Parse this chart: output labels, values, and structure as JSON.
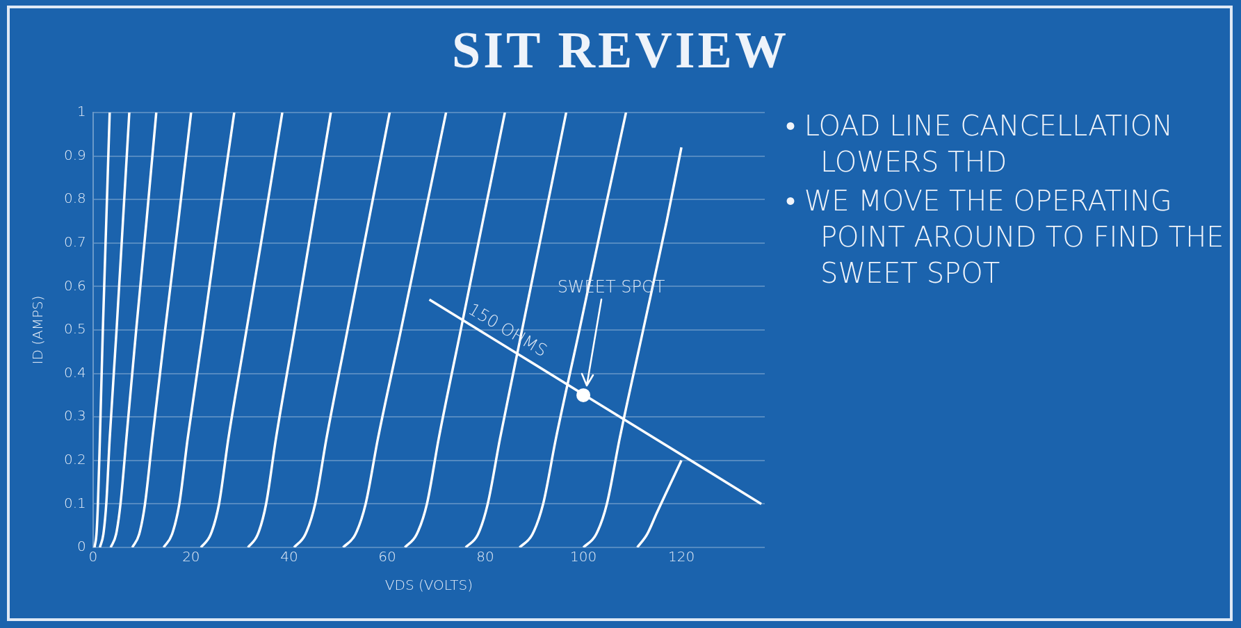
{
  "chart_data": {
    "type": "line",
    "title": "SIT REVIEW",
    "xlabel": "VDS (VOLTS)",
    "ylabel": "ID (AMPS)",
    "xlim": [
      0,
      137
    ],
    "xticks": [
      0,
      20,
      40,
      60,
      80,
      100,
      120
    ],
    "ylim": [
      0,
      1
    ],
    "yticks": [
      0,
      0.1,
      0.2,
      0.3,
      0.4,
      0.5,
      0.6,
      0.7,
      0.8,
      0.9,
      1
    ],
    "grid": "y",
    "legend": false,
    "marker": "none",
    "series": [
      {
        "color": "#ffffff",
        "x": [
          0.3,
          0.7,
          1.0,
          1.4,
          2.0,
          2.7,
          3.4
        ],
        "values": [
          0,
          0.03,
          0.1,
          0.25,
          0.5,
          0.75,
          1
        ]
      },
      {
        "color": "#ffffff",
        "x": [
          1.4,
          2.1,
          2.7,
          3.4,
          4.8,
          6.1,
          7.4
        ],
        "values": [
          0,
          0.03,
          0.1,
          0.25,
          0.5,
          0.75,
          1
        ]
      },
      {
        "color": "#ffffff",
        "x": [
          3.6,
          4.7,
          5.6,
          6.8,
          8.8,
          10.9,
          12.9
        ],
        "values": [
          0,
          0.03,
          0.1,
          0.25,
          0.5,
          0.75,
          1
        ]
      },
      {
        "color": "#ffffff",
        "x": [
          8,
          9.4,
          10.6,
          12.1,
          14.7,
          17.4,
          20
        ],
        "values": [
          0,
          0.03,
          0.1,
          0.25,
          0.5,
          0.75,
          1
        ]
      },
      {
        "color": "#ffffff",
        "x": [
          14.4,
          16.1,
          17.6,
          19.3,
          22.5,
          25.6,
          28.8
        ],
        "values": [
          0,
          0.03,
          0.1,
          0.25,
          0.5,
          0.75,
          1
        ]
      },
      {
        "color": "#ffffff",
        "x": [
          22,
          24,
          25.7,
          27.6,
          31.3,
          35,
          38.6
        ],
        "values": [
          0,
          0.03,
          0.1,
          0.25,
          0.5,
          0.75,
          1
        ]
      },
      {
        "color": "#ffffff",
        "x": [
          31.6,
          33.6,
          35.3,
          37.3,
          41.1,
          44.8,
          48.5
        ],
        "values": [
          0,
          0.03,
          0.1,
          0.25,
          0.5,
          0.75,
          1
        ]
      },
      {
        "color": "#ffffff",
        "x": [
          41,
          43.3,
          45.3,
          47.6,
          51.9,
          56.2,
          60.5
        ],
        "values": [
          0,
          0.03,
          0.1,
          0.25,
          0.5,
          0.75,
          1
        ]
      },
      {
        "color": "#ffffff",
        "x": [
          51,
          53.5,
          55.6,
          58.1,
          62.8,
          67.4,
          72
        ],
        "values": [
          0,
          0.03,
          0.1,
          0.25,
          0.5,
          0.75,
          1
        ]
      },
      {
        "color": "#ffffff",
        "x": [
          63.6,
          66,
          68.1,
          70.5,
          75,
          79.5,
          84
        ],
        "values": [
          0,
          0.03,
          0.1,
          0.25,
          0.5,
          0.75,
          1
        ]
      },
      {
        "color": "#ffffff",
        "x": [
          76,
          78.5,
          80.5,
          83,
          87.5,
          92,
          96.5
        ],
        "values": [
          0,
          0.03,
          0.1,
          0.25,
          0.5,
          0.75,
          1
        ]
      },
      {
        "color": "#ffffff",
        "x": [
          87,
          89.6,
          91.8,
          94.4,
          99.2,
          103.9,
          108.7
        ],
        "values": [
          0,
          0.03,
          0.1,
          0.25,
          0.5,
          0.75,
          1
        ]
      },
      {
        "color": "#ffffff",
        "x": [
          100,
          102.6,
          104.8,
          107.4,
          112.2,
          117,
          120
        ],
        "values": [
          0,
          0.03,
          0.1,
          0.25,
          0.5,
          0.75,
          0.92
        ]
      },
      {
        "color": "#ffffff",
        "x": [
          111,
          113,
          115,
          117.5,
          120
        ],
        "values": [
          0,
          0.03,
          0.08,
          0.14,
          0.2
        ]
      },
      {
        "color": "#ffffff",
        "x": [
          68.6,
          136.3
        ],
        "values": [
          0.57,
          0.1
        ]
      },
      {
        "type": "scatter",
        "marker": "circle",
        "color": "#ffffff",
        "x": [
          100
        ],
        "values": [
          0.35
        ]
      }
    ],
    "annotations": [
      {
        "text": "150 OHMS",
        "x": 83,
        "y": 0.47
      },
      "SWEET SPOT",
      "• LOAD LINE CANCELLATION LOWERS THD",
      "• WE MOVE THE OPERATING POINT AROUND TO FIND THE SWEET SPOT"
    ]
  }
}
